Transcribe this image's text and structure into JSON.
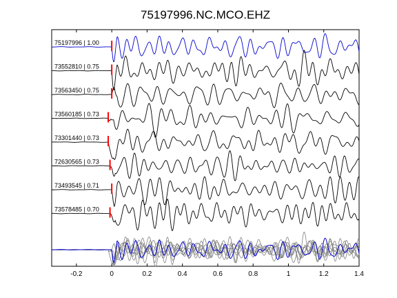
{
  "chart_data": {
    "type": "line",
    "title": "75197996.NC.MCO.EHZ",
    "xlabel": "",
    "ylabel": "",
    "xlim": [
      -0.34,
      1.4
    ],
    "xticks": [
      -0.2,
      0,
      0.2,
      0.4,
      0.6,
      0.8,
      1,
      1.2,
      1.4
    ],
    "xtick_labels": [
      "-0.2",
      "0",
      "0.2",
      "0.4",
      "0.6",
      "0.8",
      "1",
      "1.2",
      "1.4"
    ],
    "grid": false,
    "legend": "none",
    "colors": {
      "reference": "#0000cc",
      "trace": "#000000",
      "overlay": "#808080",
      "pick": "#ff0000"
    },
    "series": [
      {
        "name": "75197996 | 1.00",
        "id": "75197996",
        "cc": "1.00",
        "pick_time": 0.0,
        "reference": true
      },
      {
        "name": "73552810 | 0.75",
        "id": "73552810",
        "cc": "0.75",
        "pick_time": 0.0,
        "reference": false
      },
      {
        "name": "73563450 | 0.75",
        "id": "73563450",
        "cc": "0.75",
        "pick_time": 0.0,
        "reference": false
      },
      {
        "name": "73560185 | 0.73",
        "id": "73560185",
        "cc": "0.73",
        "pick_time": -0.02,
        "reference": false
      },
      {
        "name": "73301440 | 0.73",
        "id": "73301440",
        "cc": "0.73",
        "pick_time": -0.02,
        "reference": false
      },
      {
        "name": "72630565 | 0.73",
        "id": "72630565",
        "cc": "0.73",
        "pick_time": -0.01,
        "reference": false
      },
      {
        "name": "73493545 | 0.71",
        "id": "73493545",
        "cc": "0.71",
        "pick_time": 0.0,
        "reference": false
      },
      {
        "name": "73578485 | 0.70",
        "id": "73578485",
        "cc": "0.70",
        "pick_time": -0.01,
        "reference": false
      }
    ],
    "stack": {
      "name": ""
    }
  }
}
